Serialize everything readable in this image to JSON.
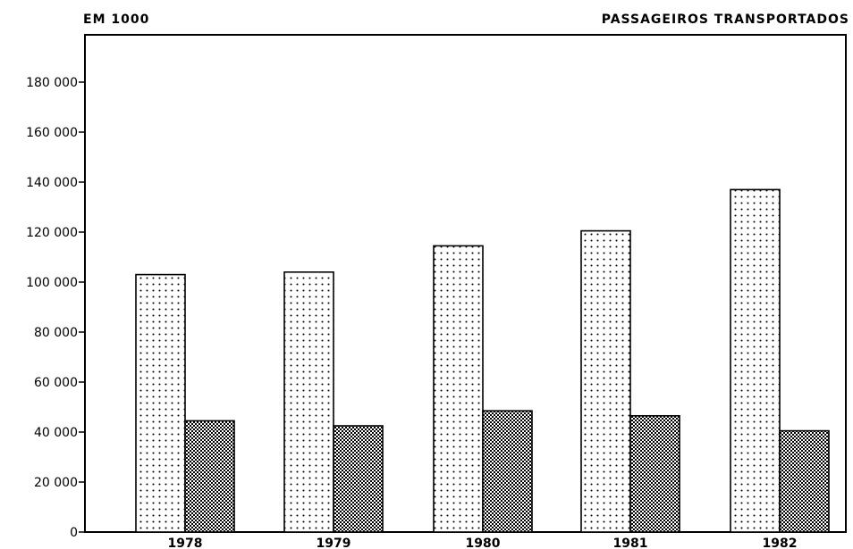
{
  "chart_data": {
    "type": "bar",
    "unit_label": "EM 1000",
    "title": "PASSAGEIROS TRANSPORTADOS",
    "xlabel": "",
    "ylabel": "",
    "categories": [
      "1978",
      "1979",
      "1980",
      "1981",
      "1982"
    ],
    "series": [
      {
        "values": [
          103000,
          104000,
          114500,
          120500,
          137000
        ],
        "pattern": "dots"
      },
      {
        "values": [
          44500,
          42500,
          48500,
          46500,
          40500
        ],
        "pattern": "crosshatch"
      }
    ],
    "ylim": [
      0,
      200000
    ],
    "yticks": [
      0,
      20000,
      40000,
      60000,
      80000,
      100000,
      120000,
      140000,
      160000,
      180000
    ],
    "ytick_labels": [
      "0",
      "20 000",
      "40 000",
      "60 000",
      "80 000",
      "100 000",
      "120 000",
      "140 000",
      "160 000",
      "180 000"
    ],
    "grid": false,
    "legend": "none",
    "colors": {
      "stroke": "#000000",
      "background": "#ffffff"
    }
  }
}
